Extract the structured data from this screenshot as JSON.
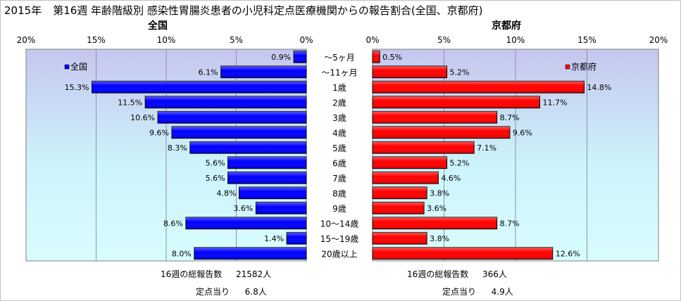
{
  "title": {
    "year": "2015年",
    "main": "第16週 年齢階級別 感染性胃腸炎患者の小児科定点医療機関からの報告割合(全国、京都府)"
  },
  "chart_data": [
    {
      "type": "bar",
      "orientation": "horizontal",
      "title": "全国",
      "legend": "全国",
      "legend_position": "top-left",
      "x_direction": "reversed",
      "xlim": [
        0,
        20
      ],
      "xticks": [
        "0%",
        "5%",
        "10%",
        "15%",
        "20%"
      ],
      "color": "#0000ff",
      "grid": true,
      "categories": [
        "～5ヶ月",
        "～11ヶ月",
        "1歳",
        "2歳",
        "3歳",
        "4歳",
        "5歳",
        "6歳",
        "7歳",
        "8歳",
        "9歳",
        "10～14歳",
        "15～19歳",
        "20歳以上"
      ],
      "values": [
        0.9,
        6.1,
        15.3,
        11.5,
        10.6,
        9.6,
        8.3,
        5.6,
        5.6,
        4.8,
        3.6,
        8.6,
        1.4,
        8.0
      ],
      "labels": [
        "0.9%",
        "6.1%",
        "15.3%",
        "11.5%",
        "10.6%",
        "9.6%",
        "8.3%",
        "5.6%",
        "5.6%",
        "4.8%",
        "3.6%",
        "8.6%",
        "1.4%",
        "8.0%"
      ]
    },
    {
      "type": "bar",
      "orientation": "horizontal",
      "title": "京都府",
      "legend": "京都府",
      "legend_position": "top-right",
      "x_direction": "normal",
      "xlim": [
        0,
        20
      ],
      "xticks": [
        "0%",
        "5%",
        "10%",
        "15%",
        "20%"
      ],
      "color": "#ff0000",
      "grid": true,
      "categories": [
        "～5ヶ月",
        "～11ヶ月",
        "1歳",
        "2歳",
        "3歳",
        "4歳",
        "5歳",
        "6歳",
        "7歳",
        "8歳",
        "9歳",
        "10～14歳",
        "15～19歳",
        "20歳以上"
      ],
      "values": [
        0.5,
        5.2,
        14.8,
        11.7,
        8.7,
        9.6,
        7.1,
        5.2,
        4.6,
        3.8,
        3.6,
        8.7,
        3.8,
        12.6
      ],
      "labels": [
        "0.5%",
        "5.2%",
        "14.8%",
        "11.7%",
        "8.7%",
        "9.6%",
        "7.1%",
        "5.2%",
        "4.6%",
        "3.8%",
        "3.6%",
        "8.7%",
        "3.8%",
        "12.6%"
      ]
    }
  ],
  "footer": {
    "national": {
      "total_label": "16週の総報告数",
      "total_value": "21582人",
      "per_site_label": "定点当り",
      "per_site_value": "6.8人"
    },
    "kyoto": {
      "total_label": "16週の総報告数",
      "total_value": "366人",
      "per_site_label": "定点当り",
      "per_site_value": "4.9人"
    }
  }
}
